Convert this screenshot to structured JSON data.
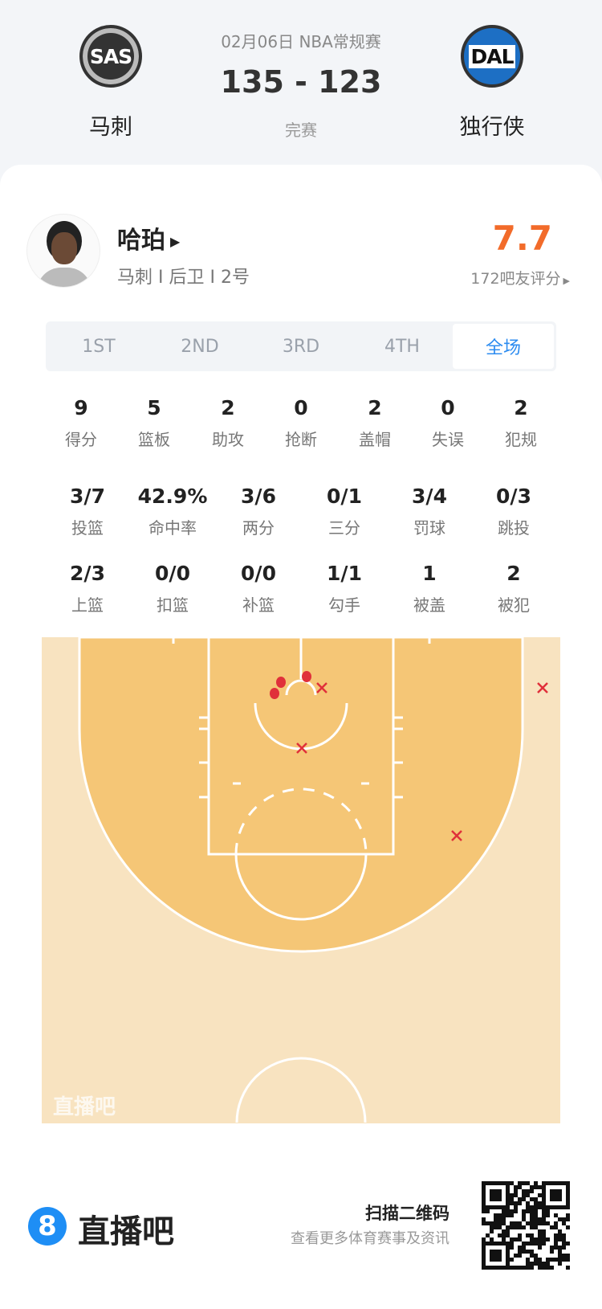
{
  "match": {
    "date_league": "02月06日 NBA常规赛",
    "score": "135 - 123",
    "status": "完赛",
    "home": {
      "abbr": "SAS",
      "name": "马刺"
    },
    "away": {
      "abbr": "DAL",
      "name": "独行侠"
    }
  },
  "player": {
    "name": "哈珀",
    "meta": "马刺 I 后卫 I 2号",
    "rating": "7.7",
    "rating_label": "172吧友评分"
  },
  "tabs": [
    {
      "label": "1ST"
    },
    {
      "label": "2ND"
    },
    {
      "label": "3RD"
    },
    {
      "label": "4TH"
    },
    {
      "label": "全场",
      "active": true
    }
  ],
  "stats_row1": [
    {
      "v": "9",
      "l": "得分"
    },
    {
      "v": "5",
      "l": "篮板"
    },
    {
      "v": "2",
      "l": "助攻"
    },
    {
      "v": "0",
      "l": "抢断"
    },
    {
      "v": "2",
      "l": "盖帽"
    },
    {
      "v": "0",
      "l": "失误"
    },
    {
      "v": "2",
      "l": "犯规"
    }
  ],
  "stats_row2": [
    {
      "v": "3/7",
      "l": "投篮"
    },
    {
      "v": "42.9%",
      "l": "命中率"
    },
    {
      "v": "3/6",
      "l": "两分"
    },
    {
      "v": "0/1",
      "l": "三分"
    },
    {
      "v": "3/4",
      "l": "罚球"
    },
    {
      "v": "0/3",
      "l": "跳投"
    }
  ],
  "stats_row3": [
    {
      "v": "2/3",
      "l": "上篮"
    },
    {
      "v": "0/0",
      "l": "扣篮"
    },
    {
      "v": "0/0",
      "l": "补篮"
    },
    {
      "v": "1/1",
      "l": "勾手"
    },
    {
      "v": "1",
      "l": "被盖"
    },
    {
      "v": "2",
      "l": "被犯"
    }
  ],
  "court": {
    "watermark": "直播吧",
    "shots": [
      {
        "result": "made"
      },
      {
        "result": "made"
      },
      {
        "result": "made"
      },
      {
        "result": "missed"
      },
      {
        "result": "missed"
      },
      {
        "result": "missed"
      },
      {
        "result": "missed"
      }
    ]
  },
  "footer": {
    "brand": "直播吧",
    "scan": "扫描二维码",
    "sub": "查看更多体育赛事及资讯"
  },
  "colors": {
    "accent": "#2d8cf0",
    "rating": "#f26b2a",
    "shot": "#e0303a",
    "court_inner": "#f5c676",
    "court_outer": "#f8e3c0"
  }
}
